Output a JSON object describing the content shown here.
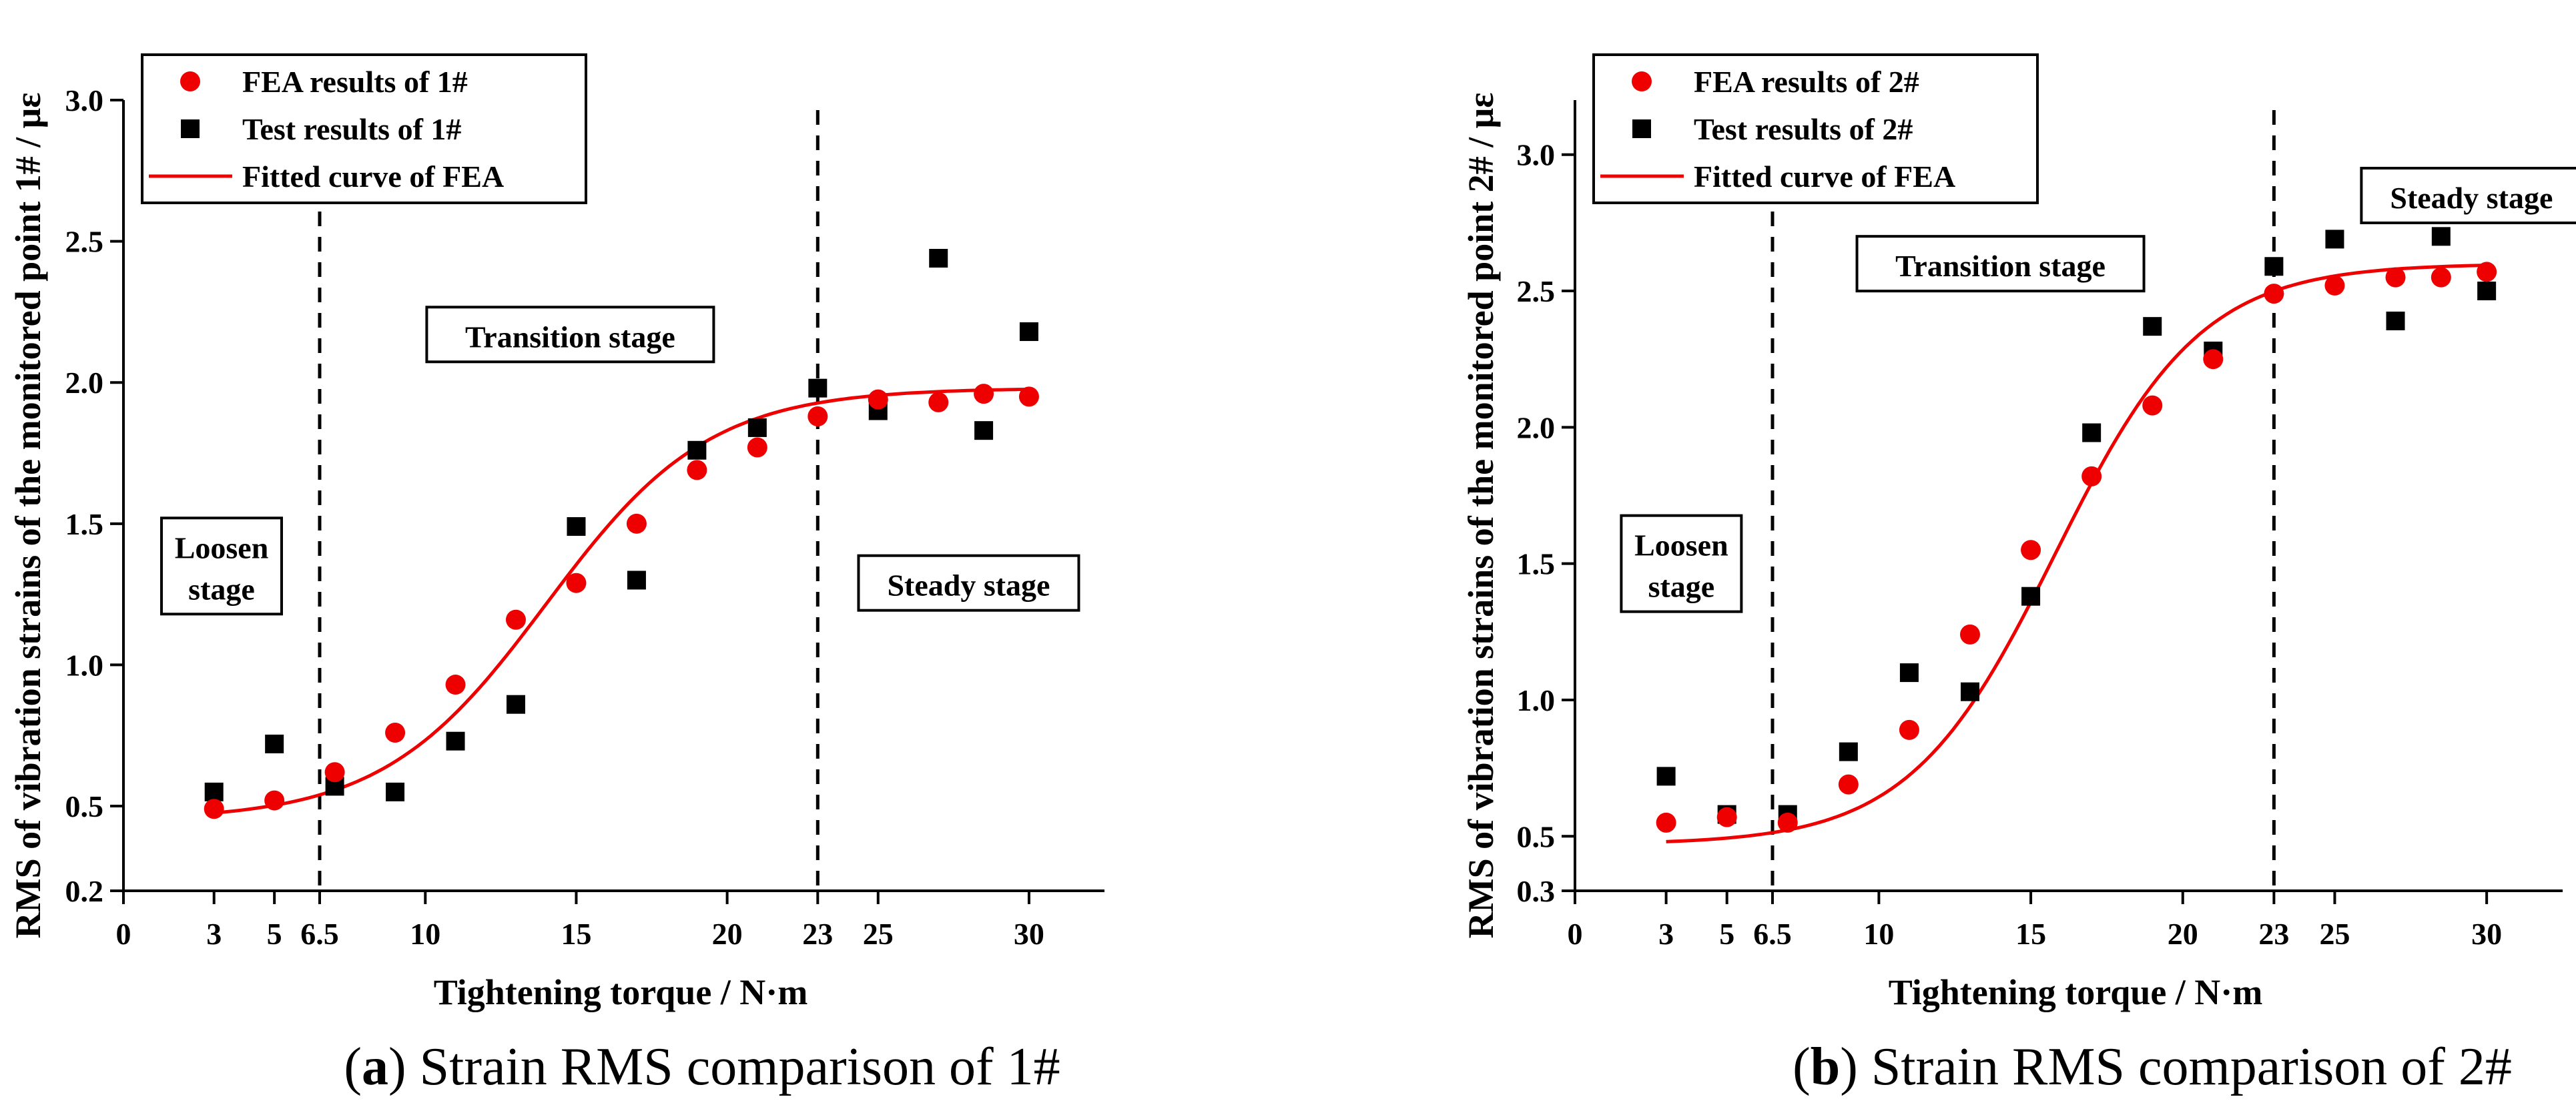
{
  "chart_data": [
    {
      "type": "scatter",
      "panel_label": "a",
      "caption": "Strain RMS comparison of 1#",
      "xlabel": "Tightening torque / N·m",
      "ylabel": "RMS of vibration strains of the monitored point 1# / με",
      "xlim": [
        0,
        32.5
      ],
      "ylim": [
        0.2,
        3.0
      ],
      "xticks": [
        0,
        3,
        5,
        6.5,
        10,
        15,
        20,
        23,
        25,
        30
      ],
      "xtick_labels": [
        "0",
        "3",
        "5",
        "6.5",
        "10",
        "15",
        "20",
        "23",
        "25",
        "30"
      ],
      "yticks": [
        0.2,
        0.5,
        1.0,
        1.5,
        2.0,
        2.5,
        3.0
      ],
      "ytick_labels": [
        "0.2",
        "0.5",
        "1.0",
        "1.5",
        "2.0",
        "2.5",
        "3.0"
      ],
      "grid": false,
      "legend_position": "top-left",
      "stage_boundaries": [
        6.5,
        23
      ],
      "series": [
        {
          "name": "FEA results of 1#",
          "marker": "circle",
          "color": "#ee0000",
          "x": [
            3,
            5,
            7,
            9,
            11,
            13,
            15,
            17,
            19,
            21,
            23,
            25,
            27,
            28.5,
            30
          ],
          "y": [
            0.49,
            0.52,
            0.62,
            0.76,
            0.93,
            1.16,
            1.29,
            1.5,
            1.69,
            1.77,
            1.88,
            1.94,
            1.93,
            1.96,
            1.95
          ]
        },
        {
          "name": "Test results of 1#",
          "marker": "square",
          "color": "#000000",
          "x": [
            3,
            5,
            7,
            9,
            11,
            13,
            15,
            17,
            19,
            21,
            23,
            25,
            27,
            28.5,
            30
          ],
          "y": [
            0.55,
            0.72,
            0.57,
            0.55,
            0.73,
            0.86,
            1.49,
            1.3,
            1.76,
            1.84,
            1.98,
            1.9,
            2.44,
            1.83,
            2.18
          ]
        },
        {
          "name": "Fitted curve of FEA",
          "marker": "line",
          "color": "#ee0000",
          "model": "logistic",
          "params": {
            "bottom": 0.45,
            "top": 1.98,
            "center": 14.0,
            "width": 2.7
          },
          "x_range": [
            3,
            30
          ]
        }
      ],
      "annotations": [
        {
          "text": "Loosen",
          "text2": "stage",
          "x": 3.25,
          "y": 1.35
        },
        {
          "text": "Transition stage",
          "x": 14.8,
          "y": 2.17
        },
        {
          "text": "Steady stage",
          "x": 28.0,
          "y": 1.29
        }
      ]
    },
    {
      "type": "scatter",
      "panel_label": "b",
      "caption": "Strain RMS comparison of 2#",
      "xlabel": "Tightening torque / N·m",
      "ylabel": "RMS of vibration strains of the monitored point 2# / με",
      "xlim": [
        0,
        32.5
      ],
      "ylim": [
        0.3,
        3.2
      ],
      "xticks": [
        0,
        3,
        5,
        6.5,
        10,
        15,
        20,
        23,
        25,
        30
      ],
      "xtick_labels": [
        "0",
        "3",
        "5",
        "6.5",
        "10",
        "15",
        "20",
        "23",
        "25",
        "30"
      ],
      "yticks": [
        0.3,
        0.5,
        1.0,
        1.5,
        2.0,
        2.5,
        3.0
      ],
      "ytick_labels": [
        "0.3",
        "0.5",
        "1.0",
        "1.5",
        "2.0",
        "2.5",
        "3.0"
      ],
      "grid": false,
      "legend_position": "top-left",
      "stage_boundaries": [
        6.5,
        23
      ],
      "series": [
        {
          "name": "FEA results of 2#",
          "marker": "circle",
          "color": "#ee0000",
          "x": [
            3,
            5,
            7,
            9,
            11,
            13,
            15,
            17,
            19,
            21,
            23,
            25,
            27,
            28.5,
            30
          ],
          "y": [
            0.55,
            0.57,
            0.55,
            0.69,
            0.89,
            1.24,
            1.55,
            1.82,
            2.08,
            2.25,
            2.49,
            2.52,
            2.55,
            2.55,
            2.57
          ]
        },
        {
          "name": "Test results of 2#",
          "marker": "square",
          "color": "#000000",
          "x": [
            3,
            5,
            7,
            9,
            11,
            13,
            15,
            17,
            19,
            21,
            23,
            25,
            27,
            28.5,
            30
          ],
          "y": [
            0.72,
            0.58,
            0.58,
            0.81,
            1.1,
            1.03,
            1.38,
            1.98,
            2.37,
            2.28,
            2.59,
            2.69,
            2.39,
            2.7,
            2.5
          ]
        },
        {
          "name": "Fitted curve of FEA",
          "marker": "line",
          "color": "#ee0000",
          "model": "logistic",
          "params": {
            "bottom": 0.47,
            "top": 2.6,
            "center": 15.8,
            "width": 2.4
          },
          "x_range": [
            3,
            30
          ]
        }
      ],
      "annotations": [
        {
          "text": "Loosen",
          "text2": "stage",
          "x": 3.5,
          "y": 1.5
        },
        {
          "text": "Transition stage",
          "x": 14.0,
          "y": 2.6
        },
        {
          "text": "Steady stage",
          "x": 29.5,
          "y": 2.85
        }
      ]
    }
  ]
}
